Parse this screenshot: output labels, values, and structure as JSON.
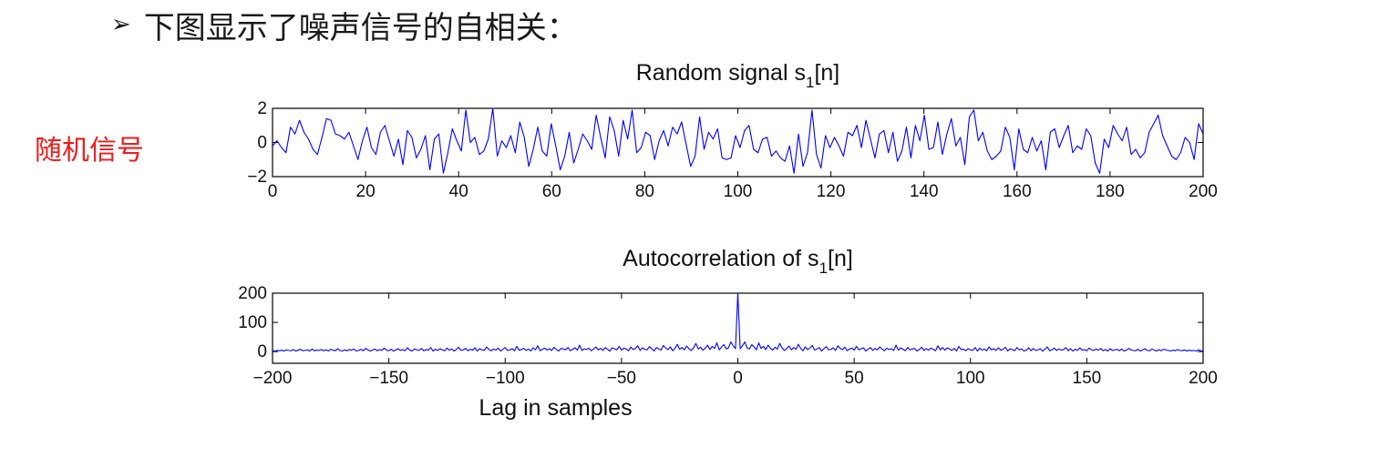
{
  "heading": {
    "bullet": "➢",
    "text": "下图显示了噪声信号的自相关："
  },
  "side_label": "随机信号",
  "colors": {
    "line": "#0000ff",
    "side_label": "#ee1b1b"
  },
  "chart_data": [
    {
      "type": "line",
      "title": "Random signal s₁[n]",
      "xlabel": "",
      "ylabel": "",
      "xlim": [
        0,
        200
      ],
      "ylim": [
        -2,
        2
      ],
      "xticks": [
        0,
        20,
        40,
        60,
        80,
        100,
        120,
        140,
        160,
        180,
        200
      ],
      "yticks": [
        -2,
        0,
        2
      ],
      "grid": false,
      "series": [
        {
          "values": [
            -0.2,
            0.1,
            -0.3,
            -0.6,
            0.9,
            0.5,
            1.3,
            0.6,
            0.2,
            -0.4,
            -0.7,
            0.3,
            1.4,
            1.3,
            0.5,
            0.4,
            0.2,
            0.6,
            -0.2,
            -1.0,
            0.1,
            0.9,
            -0.3,
            -0.7,
            0.6,
            1.0,
            0.1,
            -0.8,
            0.2,
            -1.3,
            0.7,
            0.3,
            -0.9,
            -0.4,
            0.4,
            -1.6,
            0.2,
            0.5,
            -1.8,
            -0.6,
            0.8,
            0.1,
            -0.5,
            1.9,
            0.0,
            0.3,
            -0.7,
            -0.5,
            0.2,
            2.0,
            -0.8,
            0.1,
            -0.3,
            0.4,
            -0.6,
            1.2,
            0.3,
            -1.4,
            -0.4,
            0.9,
            -0.5,
            -0.8,
            1.1,
            -0.2,
            -1.6,
            -0.8,
            0.6,
            -1.2,
            -0.4,
            0.5,
            0.1,
            -0.4,
            1.6,
            0.3,
            -0.9,
            1.5,
            0.7,
            -0.8,
            1.3,
            0.2,
            1.9,
            -0.6,
            -0.3,
            0.6,
            0.4,
            -1.0,
            0.1,
            0.7,
            -0.2,
            0.9,
            0.5,
            1.2,
            -0.1,
            -1.4,
            -0.8,
            1.5,
            -0.4,
            0.6,
            0.2,
            0.8,
            -0.9,
            -1.0,
            -0.9,
            0.4,
            -0.3,
            0.7,
            1.0,
            -0.4,
            -0.6,
            0.2,
            0.3,
            -0.8,
            -0.5,
            -0.9,
            -1.1,
            -0.2,
            -1.8,
            0.5,
            -1.4,
            -0.6,
            1.9,
            -0.7,
            -1.5,
            0.4,
            -0.3,
            0.3,
            -0.2,
            -0.8,
            0.6,
            0.4,
            1.0,
            -0.3,
            1.3,
            0.2,
            -0.9,
            0.5,
            0.7,
            -0.6,
            0.6,
            -1.1,
            -0.5,
            0.9,
            -0.9,
            1.0,
            0.1,
            1.6,
            -0.4,
            -0.3,
            1.2,
            -0.7,
            0.5,
            1.4,
            -0.2,
            0.3,
            -1.3,
            1.5,
            1.9,
            0.1,
            0.6,
            -0.5,
            -1.0,
            -0.8,
            -0.5,
            0.9,
            0.3,
            -1.6,
            0.8,
            -0.4,
            -0.6,
            0.3,
            -0.5,
            0.1,
            -1.6,
            0.6,
            0.8,
            -0.3,
            0.4,
            1.0,
            -0.6,
            -0.2,
            -0.4,
            0.8,
            0.4,
            -1.2,
            -1.8,
            0.2,
            -0.3,
            1.0,
            0.5,
            0.1,
            0.9,
            -0.7,
            -0.4,
            -0.9,
            -0.6,
            0.6,
            1.1,
            1.6,
            0.4,
            -0.2,
            -0.8,
            -1.0,
            -0.6,
            0.3,
            0.0,
            -1.0,
            1.1,
            0.5
          ]
        }
      ]
    },
    {
      "type": "line",
      "title": "Autocorrelation of s₁[n]",
      "xlabel": "Lag in samples",
      "ylabel": "",
      "xlim": [
        -200,
        200
      ],
      "ylim": [
        -40,
        200
      ],
      "xticks": [
        -200,
        -150,
        -100,
        -50,
        0,
        50,
        100,
        150,
        200
      ],
      "yticks": [
        0,
        100,
        200
      ],
      "grid": false,
      "series": [
        {
          "values": [
            3,
            2,
            4,
            3,
            5,
            2,
            6,
            4,
            3,
            7,
            2,
            5,
            8,
            3,
            4,
            6,
            2,
            9,
            3,
            5,
            4,
            7,
            3,
            6,
            2,
            8,
            5,
            3,
            10,
            4,
            2,
            6,
            3,
            7,
            5,
            9,
            2,
            4,
            8,
            3,
            11,
            6,
            2,
            5,
            9,
            3,
            7,
            4,
            12,
            5,
            3,
            8,
            2,
            6,
            10,
            4,
            7,
            3,
            13,
            5,
            2,
            9,
            6,
            4,
            11,
            3,
            7,
            5,
            14,
            2,
            8,
            4,
            10,
            6,
            3,
            12,
            5,
            9,
            2,
            7,
            15,
            4,
            6,
            11,
            3,
            8,
            5,
            13,
            2,
            10,
            6,
            4,
            16,
            7,
            3,
            9,
            5,
            12,
            2,
            8,
            14,
            4,
            6,
            10,
            3,
            18,
            5,
            7,
            11,
            4,
            9,
            2,
            13,
            6,
            20,
            3,
            8,
            12,
            5,
            10,
            4,
            15,
            7,
            2,
            11,
            9,
            6,
            14,
            3,
            8,
            13,
            5,
            22,
            4,
            10,
            7,
            12,
            3,
            9,
            16,
            6,
            11,
            4,
            14,
            8,
            2,
            13,
            10,
            6,
            18,
            5,
            12,
            9,
            3,
            15,
            7,
            11,
            20,
            4,
            13,
            8,
            6,
            17,
            10,
            2,
            14,
            9,
            5,
            21,
            12,
            7,
            16,
            3,
            11,
            25,
            8,
            14,
            6,
            19,
            10,
            4,
            13,
            28,
            9,
            15,
            5,
            12,
            22,
            7,
            18,
            11,
            30,
            6,
            16,
            24,
            9,
            13,
            33,
            20,
            10,
            200,
            10,
            20,
            33,
            13,
            9,
            24,
            16,
            6,
            30,
            11,
            18,
            7,
            22,
            12,
            5,
            15,
            9,
            28,
            13,
            4,
            10,
            19,
            6,
            14,
            8,
            25,
            11,
            3,
            16,
            7,
            12,
            21,
            5,
            9,
            14,
            2,
            10,
            17,
            6,
            8,
            13,
            4,
            20,
            11,
            7,
            15,
            3,
            9,
            12,
            5,
            18,
            6,
            10,
            13,
            2,
            8,
            14,
            4,
            11,
            6,
            16,
            9,
            3,
            12,
            7,
            10,
            4,
            22,
            5,
            13,
            8,
            3,
            14,
            6,
            9,
            11,
            2,
            7,
            15,
            4,
            10,
            5,
            12,
            8,
            3,
            20,
            6,
            14,
            5,
            13,
            9,
            4,
            11,
            2,
            18,
            7,
            8,
            3,
            10,
            6,
            4,
            14,
            2,
            12,
            5,
            9,
            3,
            16,
            6,
            10,
            4,
            13,
            5,
            8,
            15,
            2,
            10,
            7,
            3,
            14,
            6,
            9,
            2,
            5,
            13,
            3,
            11,
            4,
            6,
            10,
            2,
            8,
            16,
            3,
            6,
            12,
            4,
            9,
            5,
            7,
            14,
            3,
            10,
            2,
            8,
            4,
            13,
            5,
            7,
            3,
            12,
            6,
            4,
            9,
            5,
            11,
            3,
            7,
            2,
            10,
            4,
            6,
            8,
            3,
            9,
            2,
            5,
            11,
            6,
            4,
            3,
            8,
            2,
            6,
            10,
            4,
            3,
            9,
            5,
            2,
            7,
            3,
            8,
            6,
            4,
            2,
            5,
            3,
            7,
            4,
            3,
            6,
            2,
            5,
            3,
            4,
            2,
            6,
            3,
            2
          ]
        }
      ]
    }
  ]
}
